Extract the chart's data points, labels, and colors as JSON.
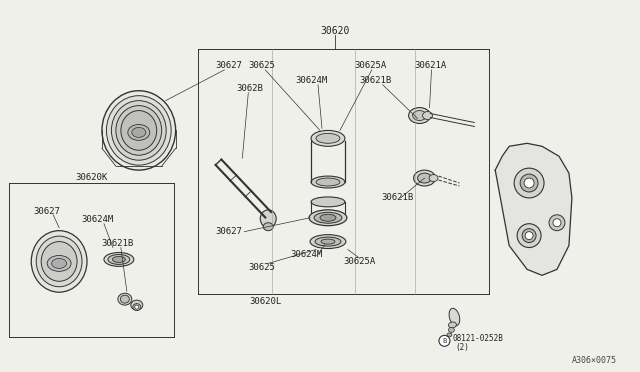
{
  "bg_color": "#f0f0eb",
  "line_color": "#333333",
  "part_number_ref": "A306×0075",
  "main_box_label": "30620",
  "sub_box_label": "30620L",
  "left_box_label": "30620K",
  "label_30627_a": "30627",
  "label_3062B": "3062B",
  "label_30625_a": "30625",
  "label_30625A_a": "30625A",
  "label_30621A": "30621A",
  "label_30624M_a": "30624M",
  "label_30621B_a": "30621B",
  "label_30627_b": "30627",
  "label_30624M_b": "30624M",
  "label_30625_b": "30625",
  "label_30625A_b": "30625A",
  "label_30621B_b": "30621B",
  "label_30627_c": "30627",
  "label_30624M_c": "30624M",
  "label_30621B_c": "30621B",
  "bolt_label": "B08121-0252B",
  "bolt_qty": "(2)"
}
